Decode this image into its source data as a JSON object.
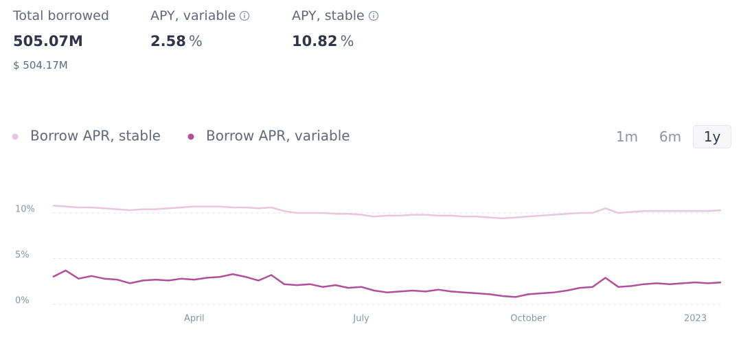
{
  "stats": [
    {
      "label": "Total borrowed",
      "value": "505.07M",
      "sub": "$ 504.17M"
    },
    {
      "label": "APY, variable",
      "value": "2.58",
      "unit": "%"
    },
    {
      "label": "APY, stable",
      "value": "10.82",
      "unit": "%"
    }
  ],
  "range_buttons": [
    "1m",
    "6m",
    "1y"
  ],
  "selected_range": 2,
  "chart_data": {
    "type": "line",
    "categories": [
      null,
      null,
      null,
      null,
      null,
      null,
      null,
      null,
      null,
      null,
      null,
      "April",
      null,
      null,
      null,
      null,
      null,
      null,
      null,
      null,
      null,
      null,
      null,
      null,
      "July",
      null,
      null,
      null,
      null,
      null,
      null,
      null,
      null,
      null,
      null,
      null,
      null,
      "October",
      null,
      null,
      null,
      null,
      null,
      null,
      null,
      null,
      null,
      null,
      null,
      null,
      "2023",
      null,
      null
    ],
    "series": [
      {
        "name": "Borrow APR, stable",
        "color": "#e8c6de",
        "values": [
          10.8,
          10.7,
          10.6,
          10.6,
          10.5,
          10.4,
          10.3,
          10.4,
          10.4,
          10.5,
          10.6,
          10.7,
          10.7,
          10.7,
          10.6,
          10.6,
          10.5,
          10.6,
          10.2,
          10.0,
          10.0,
          10.0,
          9.9,
          9.9,
          9.8,
          9.6,
          9.7,
          9.7,
          9.8,
          9.8,
          9.7,
          9.7,
          9.6,
          9.6,
          9.5,
          9.4,
          9.5,
          9.6,
          9.7,
          9.8,
          9.9,
          10.0,
          10.0,
          10.5,
          10.0,
          10.1,
          10.2,
          10.2,
          10.2,
          10.2,
          10.2,
          10.2,
          10.3
        ]
      },
      {
        "name": "Borrow APR, variable",
        "color": "#b04f9a",
        "values": [
          3.0,
          3.7,
          2.8,
          3.1,
          2.8,
          2.7,
          2.3,
          2.6,
          2.7,
          2.6,
          2.8,
          2.7,
          2.9,
          3.0,
          3.3,
          3.0,
          2.6,
          3.2,
          2.2,
          2.1,
          2.2,
          1.9,
          2.1,
          1.8,
          1.9,
          1.5,
          1.3,
          1.4,
          1.5,
          1.4,
          1.6,
          1.4,
          1.3,
          1.2,
          1.1,
          0.9,
          0.8,
          1.1,
          1.2,
          1.3,
          1.5,
          1.8,
          1.9,
          2.9,
          1.9,
          2.0,
          2.2,
          2.3,
          2.2,
          2.3,
          2.4,
          2.3,
          2.4
        ]
      }
    ],
    "ylim": [
      0,
      11.5
    ],
    "yticks": [
      {
        "value": 0,
        "label": "0%"
      },
      {
        "value": 5,
        "label": "5%"
      },
      {
        "value": 10,
        "label": "10%"
      }
    ],
    "grid": true
  }
}
